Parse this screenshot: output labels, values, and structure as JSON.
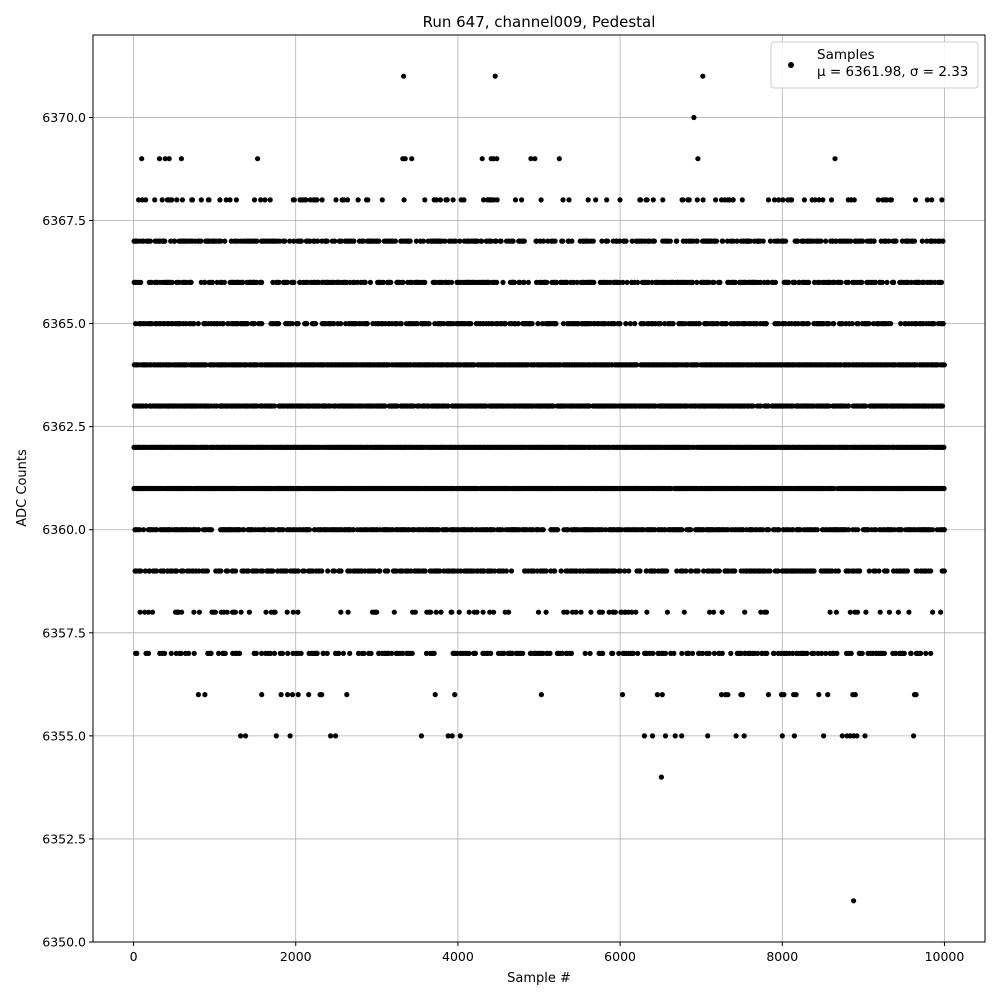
{
  "chart_data": {
    "type": "scatter",
    "title": "Run 647, channel009, Pedestal",
    "xlabel": "Sample #",
    "ylabel": "ADC Counts",
    "xlim": [
      -500,
      10500
    ],
    "ylim": [
      6350,
      6372
    ],
    "x_ticks": [
      0,
      2000,
      4000,
      6000,
      8000,
      10000
    ],
    "x_tick_labels": [
      "0",
      "2000",
      "4000",
      "6000",
      "8000",
      "10000"
    ],
    "y_ticks": [
      6350.0,
      6352.5,
      6355.0,
      6357.5,
      6360.0,
      6362.5,
      6365.0,
      6367.5,
      6370.0
    ],
    "y_tick_labels": [
      "6350.0",
      "6352.5",
      "6355.0",
      "6357.5",
      "6360.0",
      "6362.5",
      "6365.0",
      "6367.5",
      "6370.0"
    ],
    "grid": true,
    "legend_position": "top-right",
    "series": [
      {
        "name": "Samples",
        "color": "#000000",
        "marker": "circle",
        "annotation": "μ = 6361.98, σ = 2.33",
        "mean": 6361.98,
        "sigma": 2.33,
        "n_samples": 10000,
        "value_levels": [
          {
            "y": 6361,
            "density": 0.92
          },
          {
            "y": 6362,
            "density": 0.93
          },
          {
            "y": 6363,
            "density": 0.72
          },
          {
            "y": 6364,
            "density": 0.9
          },
          {
            "y": 6360,
            "density": 0.62
          },
          {
            "y": 6365,
            "density": 0.45
          },
          {
            "y": 6366,
            "density": 0.42
          },
          {
            "y": 6359,
            "density": 0.38
          },
          {
            "y": 6367,
            "density": 0.42
          },
          {
            "y": 6357,
            "density": 0.3
          },
          {
            "y": 6358,
            "density": 0.12
          },
          {
            "y": 6368,
            "density": 0.14
          }
        ],
        "sparse_points": [
          {
            "x": 100,
            "y": 6369
          },
          {
            "x": 320,
            "y": 6369
          },
          {
            "x": 390,
            "y": 6369
          },
          {
            "x": 440,
            "y": 6369
          },
          {
            "x": 590,
            "y": 6369
          },
          {
            "x": 1530,
            "y": 6369
          },
          {
            "x": 3320,
            "y": 6369
          },
          {
            "x": 3350,
            "y": 6369
          },
          {
            "x": 3430,
            "y": 6369
          },
          {
            "x": 4300,
            "y": 6369
          },
          {
            "x": 4410,
            "y": 6369
          },
          {
            "x": 4440,
            "y": 6369
          },
          {
            "x": 4480,
            "y": 6369
          },
          {
            "x": 4900,
            "y": 6369
          },
          {
            "x": 4950,
            "y": 6369
          },
          {
            "x": 5250,
            "y": 6369
          },
          {
            "x": 6960,
            "y": 6369
          },
          {
            "x": 8650,
            "y": 6369
          },
          {
            "x": 3330,
            "y": 6371
          },
          {
            "x": 4460,
            "y": 6371
          },
          {
            "x": 7020,
            "y": 6371
          },
          {
            "x": 6910,
            "y": 6370
          },
          {
            "x": 800,
            "y": 6356
          },
          {
            "x": 880,
            "y": 6356
          },
          {
            "x": 1580,
            "y": 6356
          },
          {
            "x": 1820,
            "y": 6356
          },
          {
            "x": 1900,
            "y": 6356
          },
          {
            "x": 1960,
            "y": 6356
          },
          {
            "x": 2030,
            "y": 6356
          },
          {
            "x": 2160,
            "y": 6356
          },
          {
            "x": 2300,
            "y": 6356
          },
          {
            "x": 2320,
            "y": 6356
          },
          {
            "x": 2630,
            "y": 6356
          },
          {
            "x": 3720,
            "y": 6356
          },
          {
            "x": 3960,
            "y": 6356
          },
          {
            "x": 5030,
            "y": 6356
          },
          {
            "x": 6030,
            "y": 6356
          },
          {
            "x": 6460,
            "y": 6356
          },
          {
            "x": 6520,
            "y": 6356
          },
          {
            "x": 7250,
            "y": 6356
          },
          {
            "x": 7300,
            "y": 6356
          },
          {
            "x": 7330,
            "y": 6356
          },
          {
            "x": 7490,
            "y": 6356
          },
          {
            "x": 7510,
            "y": 6356
          },
          {
            "x": 7830,
            "y": 6356
          },
          {
            "x": 7990,
            "y": 6356
          },
          {
            "x": 8020,
            "y": 6356
          },
          {
            "x": 8140,
            "y": 6356
          },
          {
            "x": 8170,
            "y": 6356
          },
          {
            "x": 8450,
            "y": 6356
          },
          {
            "x": 8560,
            "y": 6356
          },
          {
            "x": 8870,
            "y": 6356
          },
          {
            "x": 8900,
            "y": 6356
          },
          {
            "x": 9630,
            "y": 6356
          },
          {
            "x": 9650,
            "y": 6356
          },
          {
            "x": 1320,
            "y": 6355
          },
          {
            "x": 1380,
            "y": 6355
          },
          {
            "x": 1760,
            "y": 6355
          },
          {
            "x": 1930,
            "y": 6355
          },
          {
            "x": 2430,
            "y": 6355
          },
          {
            "x": 2490,
            "y": 6355
          },
          {
            "x": 3550,
            "y": 6355
          },
          {
            "x": 3880,
            "y": 6355
          },
          {
            "x": 3930,
            "y": 6355
          },
          {
            "x": 4030,
            "y": 6355
          },
          {
            "x": 6300,
            "y": 6355
          },
          {
            "x": 6400,
            "y": 6355
          },
          {
            "x": 6560,
            "y": 6355
          },
          {
            "x": 6680,
            "y": 6355
          },
          {
            "x": 6760,
            "y": 6355
          },
          {
            "x": 7080,
            "y": 6355
          },
          {
            "x": 7430,
            "y": 6355
          },
          {
            "x": 7530,
            "y": 6355
          },
          {
            "x": 8000,
            "y": 6355
          },
          {
            "x": 8150,
            "y": 6355
          },
          {
            "x": 8510,
            "y": 6355
          },
          {
            "x": 8740,
            "y": 6355
          },
          {
            "x": 8800,
            "y": 6355
          },
          {
            "x": 8840,
            "y": 6355
          },
          {
            "x": 8880,
            "y": 6355
          },
          {
            "x": 8920,
            "y": 6355
          },
          {
            "x": 9020,
            "y": 6355
          },
          {
            "x": 9620,
            "y": 6355
          },
          {
            "x": 6510,
            "y": 6354
          },
          {
            "x": 8880,
            "y": 6351
          }
        ]
      }
    ]
  }
}
